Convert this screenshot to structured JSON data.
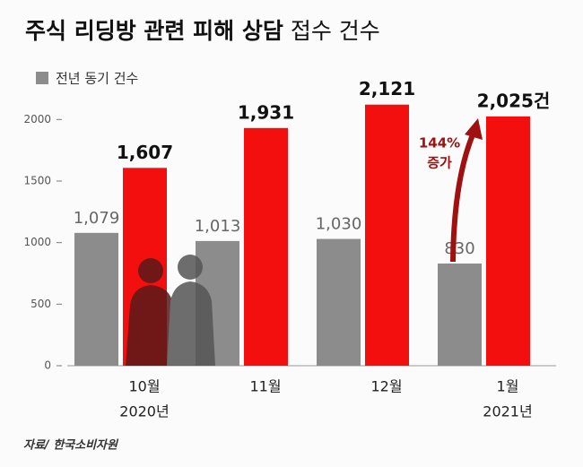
{
  "chart_data": {
    "type": "bar",
    "title": "주식 리딩방 관련 피해 상담",
    "title_suffix": "접수 건수",
    "categories": [
      "10월",
      "11월",
      "12월",
      "1월"
    ],
    "year_labels": [
      "2020년",
      null,
      null,
      "2021년"
    ],
    "series": [
      {
        "name": "전년 동기 건수",
        "color": "#8c8c8c",
        "values": [
          1079,
          1013,
          1030,
          830
        ],
        "value_labels": [
          "1,079",
          "1,013",
          "1,030",
          "830"
        ]
      },
      {
        "color": "#f40f0f",
        "values": [
          1607,
          1931,
          2121,
          2025
        ],
        "value_labels": [
          "1,607",
          "1,931",
          "2,121",
          "2,025건"
        ]
      }
    ],
    "ylim": [
      0,
      2250
    ],
    "yticks": [
      0,
      500,
      1000,
      1500,
      2000
    ],
    "annotation": [
      "144%",
      "증가"
    ],
    "source": "자료/ 한국소비자원"
  }
}
